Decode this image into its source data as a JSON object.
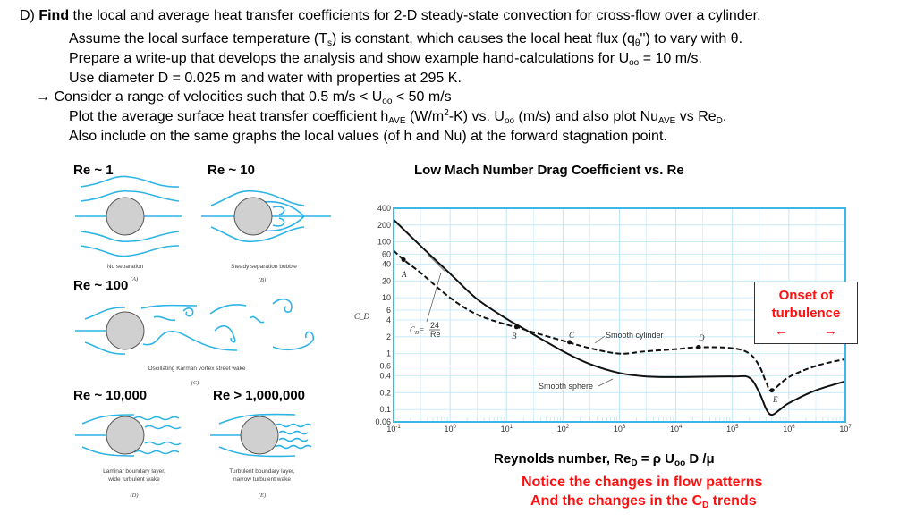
{
  "text_lines": [
    [
      {
        "t": "D)  "
      },
      {
        "t": "Find",
        "s": "b"
      },
      {
        "t": " the local and average heat transfer coefficients for 2-D steady-state convection for cross-flow over a cylinder."
      }
    ],
    [
      {
        "t": "Assume the local surface temperature (T"
      },
      {
        "t": "s",
        "s": "sub"
      },
      {
        "t": ") is constant, which causes the local heat flux (q"
      },
      {
        "t": "θ",
        "s": "sub"
      },
      {
        "t": "'') to vary with θ."
      }
    ],
    [
      {
        "t": "Prepare a write-up that develops the analysis and show example hand-calculations for U"
      },
      {
        "t": "oo",
        "s": "sub"
      },
      {
        "t": " = 10 m/s."
      }
    ],
    [
      {
        "t": "Use diameter D = 0.025 m and water with properties at 295 K."
      }
    ],
    [
      {
        "t": "→ Consider a range of velocities such that 0.5 m/s < U"
      },
      {
        "t": "oo",
        "s": "sub"
      },
      {
        "t": " < 50 m/s"
      }
    ],
    [
      {
        "t": "Plot the average surface heat transfer coefficient h"
      },
      {
        "t": "AVE",
        "s": "sub"
      },
      {
        "t": " (W/m"
      },
      {
        "t": "2",
        "s": "sup"
      },
      {
        "t": "-K) vs. U"
      },
      {
        "t": "oo",
        "s": "sub"
      },
      {
        "t": " (m/s) and also plot Nu"
      },
      {
        "t": "AVE",
        "s": "sub"
      },
      {
        "t": " vs Re"
      },
      {
        "t": "D",
        "s": "sub"
      },
      {
        "t": "."
      }
    ],
    [
      {
        "t": "Also include on the same graphs the local values (of h and Nu) at the forward stagnation point."
      }
    ]
  ],
  "flow_regimes": {
    "re1": {
      "title": "Re ~ 1",
      "caption": "No separation",
      "tag": "(A)"
    },
    "re10": {
      "title": "Re ~ 10",
      "caption": "Steady separation bubble",
      "tag": "(B)"
    },
    "re100": {
      "title": "Re ~ 100",
      "caption": "Oscillating Karman vortex street wake",
      "tag": "(C)"
    },
    "re10000": {
      "title": "Re ~ 10,000",
      "caption1": "Laminar boundary layer,",
      "caption2": "wide turbulent wake",
      "tag": "(D)"
    },
    "re1e6": {
      "title": "Re > 1,000,000",
      "caption1": "Turbulent boundary layer,",
      "caption2": "narrow turbulent wake",
      "tag": "(E)"
    }
  },
  "chart_data": {
    "type": "line",
    "title": "Low Mach Number Drag Coefficient vs. Re",
    "ylabel": "C_D",
    "xlabel_parts": [
      {
        "t": "Reynolds number,  Re"
      },
      {
        "t": "D",
        "s": "sub"
      },
      {
        "t": " = ρ U"
      },
      {
        "t": "oo",
        "s": "sub"
      },
      {
        "t": " D /μ"
      }
    ],
    "xscale": "log",
    "yscale": "log",
    "xlim": [
      0.1,
      10000000
    ],
    "ylim": [
      0.06,
      400
    ],
    "grid": true,
    "x_ticks": [
      {
        "base": "10",
        "exp": "-1"
      },
      {
        "base": "10",
        "exp": "0"
      },
      {
        "base": "10",
        "exp": "1"
      },
      {
        "base": "10",
        "exp": "2"
      },
      {
        "base": "10",
        "exp": "3"
      },
      {
        "base": "10",
        "exp": "4"
      },
      {
        "base": "10",
        "exp": "5"
      },
      {
        "base": "10",
        "exp": "6"
      },
      {
        "base": "10",
        "exp": "7"
      }
    ],
    "y_ticks": [
      "400",
      "200",
      "100",
      "60",
      "40",
      "20",
      "10",
      "6",
      "4",
      "2",
      "1",
      "0.6",
      "0.4",
      "0.2",
      "0.1",
      "0.06"
    ],
    "series": [
      {
        "name": "Smooth cylinder",
        "style": "dashed",
        "x": [
          0.1,
          0.15,
          0.3,
          1,
          3,
          10,
          15,
          30,
          100,
          300,
          1000,
          3000,
          10000,
          25000,
          100000,
          200000,
          300000,
          400000,
          500000,
          1000000,
          3000000,
          10000000
        ],
        "y": [
          70,
          48,
          28,
          10,
          5,
          3.3,
          3.0,
          2.4,
          1.7,
          1.25,
          1.0,
          1.1,
          1.2,
          1.3,
          1.25,
          1.0,
          0.6,
          0.3,
          0.22,
          0.38,
          0.6,
          0.8
        ]
      },
      {
        "name": "Smooth sphere",
        "style": "solid",
        "x": [
          0.1,
          0.3,
          1,
          3,
          10,
          20,
          100,
          300,
          1000,
          3000,
          10000,
          100000,
          200000,
          300000,
          400000,
          500000,
          700000,
          1000000,
          3000000,
          10000000
        ],
        "y": [
          250,
          85,
          27,
          9.5,
          4.2,
          2.8,
          1.1,
          0.65,
          0.45,
          0.39,
          0.38,
          0.39,
          0.37,
          0.2,
          0.1,
          0.08,
          0.1,
          0.13,
          0.22,
          0.32
        ]
      }
    ],
    "annotations": {
      "A": "A",
      "B": "B",
      "C": "C",
      "D": "D",
      "E": "E",
      "stokes_lhs": "C",
      "stokes_sub": "D",
      "stokes_eq": "=",
      "stokes_num": "24",
      "stokes_den": "Re",
      "cylinder_label": "Smooth cylinder",
      "sphere_label": "Smooth sphere"
    },
    "stokes_line": {
      "x": [
        0.4,
        0.8
      ],
      "y": [
        60,
        30
      ]
    }
  },
  "onset_box": {
    "line1": "Onset of",
    "line2": "turbulence",
    "left_arrow": "←",
    "right_arrow": "→"
  },
  "notes": {
    "line1": "Notice the changes in flow patterns",
    "line2_a": "And the changes in the C",
    "line2_sub": "D",
    "line2_b": " trends"
  },
  "colors": {
    "streamline": "#2fb4e6",
    "grid": "#bfe6f7",
    "frame": "#3cb8e8",
    "emphasis": "#ff1010"
  }
}
